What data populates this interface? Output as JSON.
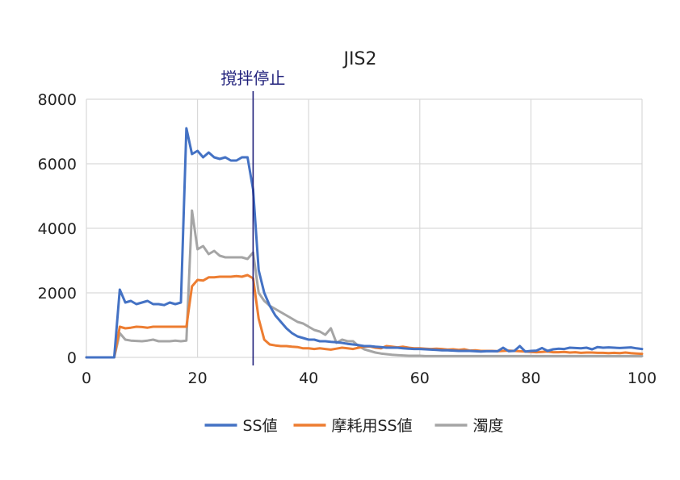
{
  "chart_data": {
    "type": "line",
    "title": "JIS2",
    "annotation": "撹拌停止",
    "annotation_x": 30,
    "xlim": [
      0,
      100
    ],
    "ylim": [
      0,
      8000
    ],
    "x_ticks": [
      0,
      20,
      40,
      60,
      80,
      100
    ],
    "y_ticks": [
      0,
      2000,
      4000,
      6000,
      8000
    ],
    "x_tick_labels": [
      "0",
      "20",
      "40",
      "60",
      "80",
      "100"
    ],
    "y_tick_labels": [
      "0",
      "2000",
      "4000",
      "6000",
      "8000"
    ],
    "grid": true,
    "legend_position": "bottom",
    "colors": {
      "ss": "#4472C4",
      "wear": "#ED7D31",
      "turbidity": "#A5A5A5",
      "annotation_line": "#1F1F7A",
      "grid": "#D9D9D9"
    },
    "series": [
      {
        "name": "SS値",
        "color": "#4472C4",
        "x": [
          0,
          1,
          2,
          3,
          4,
          5,
          6,
          7,
          8,
          9,
          10,
          11,
          12,
          13,
          14,
          15,
          16,
          17,
          18,
          19,
          20,
          21,
          22,
          23,
          24,
          25,
          26,
          27,
          28,
          29,
          30,
          31,
          32,
          33,
          34,
          35,
          36,
          37,
          38,
          39,
          40,
          41,
          42,
          43,
          44,
          45,
          46,
          47,
          48,
          49,
          50,
          51,
          52,
          53,
          54,
          55,
          56,
          57,
          58,
          59,
          60,
          61,
          62,
          63,
          64,
          65,
          66,
          67,
          68,
          69,
          70,
          71,
          72,
          73,
          74,
          75,
          76,
          77,
          78,
          79,
          80,
          81,
          82,
          83,
          84,
          85,
          86,
          87,
          88,
          89,
          90,
          91,
          92,
          93,
          94,
          95,
          96,
          97,
          98,
          99,
          100
        ],
        "values": [
          0,
          0,
          0,
          0,
          0,
          0,
          2100,
          1700,
          1750,
          1650,
          1700,
          1750,
          1650,
          1650,
          1620,
          1700,
          1650,
          1700,
          7100,
          6300,
          6400,
          6200,
          6350,
          6200,
          6150,
          6200,
          6100,
          6100,
          6200,
          6200,
          5200,
          2700,
          2000,
          1600,
          1300,
          1100,
          900,
          750,
          650,
          600,
          550,
          550,
          500,
          500,
          480,
          470,
          450,
          420,
          400,
          380,
          350,
          350,
          330,
          320,
          300,
          300,
          300,
          280,
          270,
          260,
          260,
          250,
          240,
          230,
          220,
          220,
          210,
          200,
          200,
          200,
          190,
          180,
          190,
          190,
          190,
          300,
          190,
          200,
          350,
          180,
          200,
          210,
          290,
          200,
          250,
          270,
          260,
          300,
          290,
          280,
          300,
          250,
          320,
          300,
          310,
          300,
          290,
          300,
          310,
          280,
          260
        ]
      },
      {
        "name": "摩耗用SS値",
        "color": "#ED7D31",
        "x": [
          0,
          1,
          2,
          3,
          4,
          5,
          6,
          7,
          8,
          9,
          10,
          11,
          12,
          13,
          14,
          15,
          16,
          17,
          18,
          19,
          20,
          21,
          22,
          23,
          24,
          25,
          26,
          27,
          28,
          29,
          30,
          31,
          32,
          33,
          34,
          35,
          36,
          37,
          38,
          39,
          40,
          41,
          42,
          43,
          44,
          45,
          46,
          47,
          48,
          49,
          50,
          51,
          52,
          53,
          54,
          55,
          56,
          57,
          58,
          59,
          60,
          61,
          62,
          63,
          64,
          65,
          66,
          67,
          68,
          69,
          70,
          71,
          72,
          73,
          74,
          75,
          76,
          77,
          78,
          79,
          80,
          81,
          82,
          83,
          84,
          85,
          86,
          87,
          88,
          89,
          90,
          91,
          92,
          93,
          94,
          95,
          96,
          97,
          98,
          99,
          100
        ],
        "values": [
          0,
          0,
          0,
          0,
          0,
          0,
          950,
          900,
          920,
          950,
          940,
          920,
          950,
          950,
          950,
          950,
          950,
          950,
          950,
          2200,
          2400,
          2380,
          2480,
          2480,
          2500,
          2500,
          2500,
          2520,
          2500,
          2550,
          2450,
          1200,
          550,
          400,
          370,
          350,
          350,
          330,
          320,
          280,
          280,
          260,
          280,
          260,
          240,
          270,
          300,
          280,
          260,
          300,
          330,
          340,
          300,
          280,
          350,
          330,
          310,
          330,
          300,
          280,
          280,
          270,
          260,
          270,
          260,
          240,
          250,
          230,
          250,
          210,
          220,
          200,
          200,
          200,
          190,
          200,
          210,
          200,
          190,
          180,
          170,
          160,
          170,
          180,
          160,
          160,
          170,
          150,
          160,
          140,
          150,
          150,
          140,
          140,
          130,
          140,
          130,
          150,
          130,
          120,
          110
        ]
      },
      {
        "name": "濁度",
        "color": "#A5A5A5",
        "x": [
          0,
          1,
          2,
          3,
          4,
          5,
          6,
          7,
          8,
          9,
          10,
          11,
          12,
          13,
          14,
          15,
          16,
          17,
          18,
          19,
          20,
          21,
          22,
          23,
          24,
          25,
          26,
          27,
          28,
          29,
          30,
          31,
          32,
          33,
          34,
          35,
          36,
          37,
          38,
          39,
          40,
          41,
          42,
          43,
          44,
          45,
          46,
          47,
          48,
          49,
          50,
          51,
          52,
          53,
          54,
          55,
          56,
          57,
          58,
          59,
          60,
          61,
          62,
          63,
          64,
          65,
          66,
          67,
          68,
          69,
          70,
          71,
          72,
          73,
          74,
          75,
          76,
          77,
          78,
          79,
          80,
          81,
          82,
          83,
          84,
          85,
          86,
          87,
          88,
          89,
          90,
          91,
          92,
          93,
          94,
          95,
          96,
          97,
          98,
          99,
          100
        ],
        "values": [
          0,
          0,
          0,
          0,
          0,
          0,
          750,
          550,
          520,
          510,
          500,
          520,
          550,
          500,
          500,
          500,
          520,
          500,
          520,
          4550,
          3350,
          3450,
          3200,
          3300,
          3150,
          3100,
          3100,
          3100,
          3100,
          3050,
          3250,
          2000,
          1750,
          1600,
          1500,
          1400,
          1300,
          1200,
          1100,
          1050,
          950,
          850,
          800,
          700,
          900,
          450,
          550,
          500,
          500,
          350,
          250,
          200,
          150,
          120,
          100,
          80,
          70,
          60,
          50,
          50,
          50,
          40,
          40,
          40,
          40,
          40,
          40,
          40,
          40,
          40,
          40,
          40,
          40,
          40,
          40,
          40,
          40,
          40,
          40,
          40,
          40,
          40,
          40,
          40,
          40,
          40,
          40,
          40,
          40,
          40,
          40,
          40,
          40,
          40,
          40,
          40,
          40,
          40,
          40,
          40,
          40
        ]
      }
    ]
  }
}
